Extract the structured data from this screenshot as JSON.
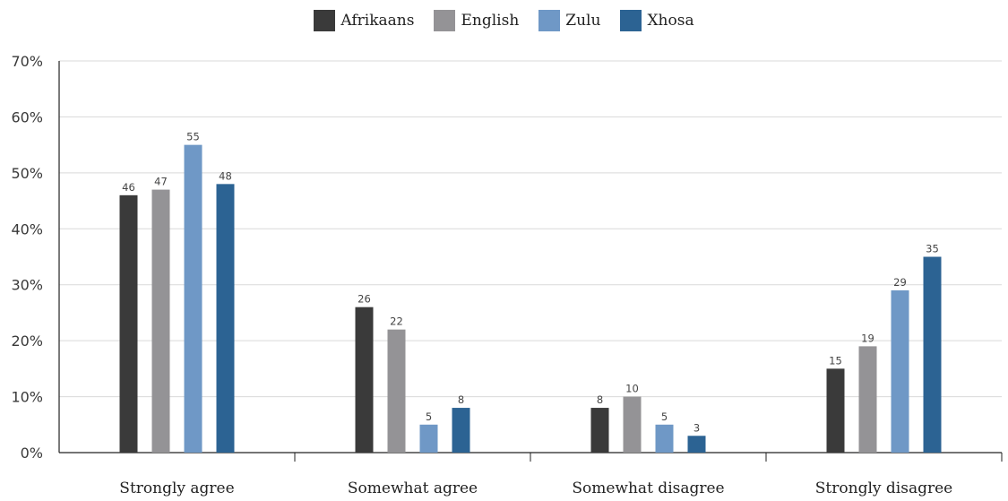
{
  "chart_data": {
    "type": "bar",
    "categories": [
      "Strongly agree",
      "Somewhat agree",
      "Somewhat disagree",
      "Strongly disagree"
    ],
    "series": [
      {
        "name": "Afrikaans",
        "color": "#3a3a3a",
        "values": [
          46,
          26,
          8,
          15
        ]
      },
      {
        "name": "English",
        "color": "#949396",
        "values": [
          47,
          22,
          10,
          19
        ]
      },
      {
        "name": "Zulu",
        "color": "#6f98c6",
        "values": [
          55,
          5,
          5,
          29
        ]
      },
      {
        "name": "Xhosa",
        "color": "#2c6393",
        "values": [
          48,
          8,
          3,
          35
        ]
      }
    ],
    "ylim": [
      0,
      70
    ],
    "yticks": [
      "0%",
      "10%",
      "20%",
      "30%",
      "40%",
      "50%",
      "60%",
      "70%"
    ],
    "grid": true,
    "legend_position": "top-center",
    "data_labels": true
  }
}
